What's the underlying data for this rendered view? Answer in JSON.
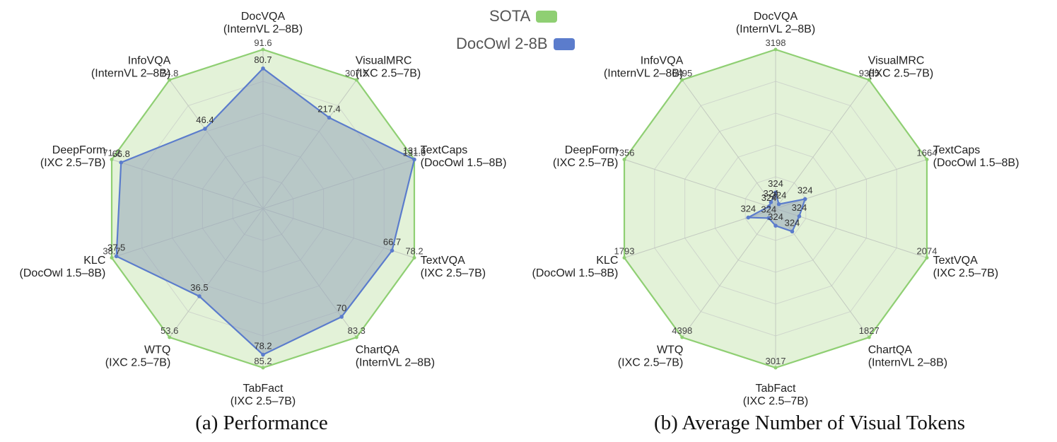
{
  "legend": {
    "sota_label": "SOTA",
    "docowl_label": "DocOwl 2-8B",
    "sota_color": "#8fcf73",
    "docowl_color": "#5b7ccc"
  },
  "captions": {
    "a": "(a) Performance",
    "b": "(b) Average Number of Visual Tokens"
  },
  "chart_data": [
    {
      "type": "radar",
      "title": "(a) Performance",
      "axes": [
        {
          "name": "DocVQA",
          "sota_model": "(InternVL 2–8B)"
        },
        {
          "name": "VisualMRC",
          "sota_model": "(IXC 2.5–7B)"
        },
        {
          "name": "TextCaps",
          "sota_model": "(DocOwl 1.5–8B)"
        },
        {
          "name": "TextVQA",
          "sota_model": "(IXC 2.5–7B)"
        },
        {
          "name": "ChartQA",
          "sota_model": "(InternVL 2–8B)"
        },
        {
          "name": "TabFact",
          "sota_model": "(IXC 2.5–7B)"
        },
        {
          "name": "WTQ",
          "sota_model": "(IXC 2.5–7B)"
        },
        {
          "name": "KLC",
          "sota_model": "(DocOwl 1.5–8B)"
        },
        {
          "name": "DeepForm",
          "sota_model": "(IXC 2.5–7B)"
        },
        {
          "name": "InfoVQA",
          "sota_model": "(InternVL 2–8B)"
        }
      ],
      "series": [
        {
          "name": "SOTA",
          "values": [
            91.6,
            307.5,
            131.6,
            78.2,
            83.3,
            85.2,
            53.6,
            38.7,
            71.2,
            74.8
          ]
        },
        {
          "name": "DocOwl 2-8B",
          "values": [
            80.7,
            217.4,
            131.6,
            66.7,
            70,
            78.2,
            36.5,
            37.5,
            66.8,
            46.4
          ]
        }
      ],
      "ring_count": 5
    },
    {
      "type": "radar",
      "title": "(b) Average Number of Visual Tokens",
      "axes": [
        {
          "name": "DocVQA",
          "sota_model": "(InternVL 2–8B)"
        },
        {
          "name": "VisualMRC",
          "sota_model": "(IXC 2.5–7B)"
        },
        {
          "name": "TextCaps",
          "sota_model": "(DocOwl 1.5–8B)"
        },
        {
          "name": "TextVQA",
          "sota_model": "(IXC 2.5–7B)"
        },
        {
          "name": "ChartQA",
          "sota_model": "(InternVL 2–8B)"
        },
        {
          "name": "TabFact",
          "sota_model": "(IXC 2.5–7B)"
        },
        {
          "name": "WTQ",
          "sota_model": "(IXC 2.5–7B)"
        },
        {
          "name": "KLC",
          "sota_model": "(DocOwl 1.5–8B)"
        },
        {
          "name": "DeepForm",
          "sota_model": "(IXC 2.5–7B)"
        },
        {
          "name": "InfoVQA",
          "sota_model": "(InternVL 2–8B)"
        }
      ],
      "series": [
        {
          "name": "SOTA",
          "values": [
            3198,
            9385,
            1664,
            2074,
            1827,
            3017,
            4398,
            1793,
            7356,
            6495
          ]
        },
        {
          "name": "DocOwl 2-8B",
          "values": [
            324,
            324,
            324,
            324,
            324,
            324,
            324,
            324,
            324,
            324
          ]
        }
      ],
      "ring_count": 5
    }
  ]
}
